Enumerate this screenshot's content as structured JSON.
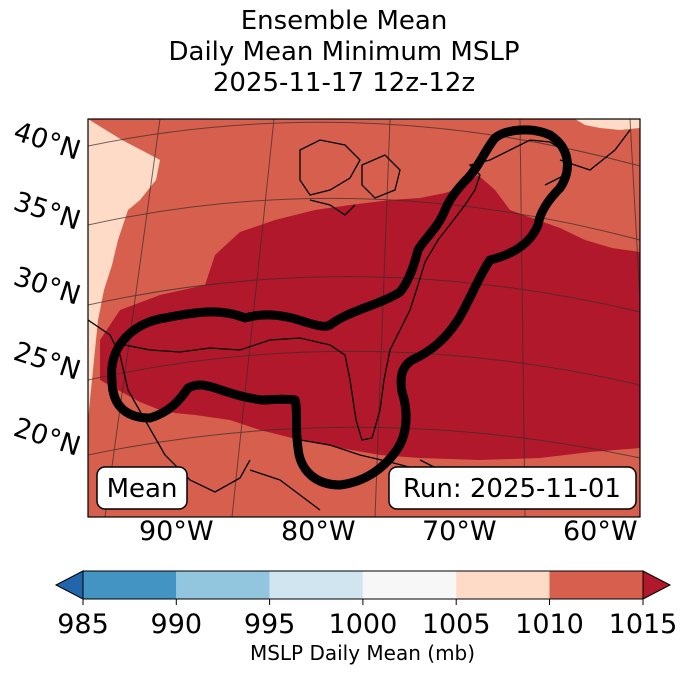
{
  "title": {
    "line1": "Ensemble Mean",
    "line2": "Daily Mean Minimum MSLP",
    "line3": "2025-11-17 12z-12z"
  },
  "map": {
    "lat_labels": [
      "40°N",
      "35°N",
      "30°N",
      "25°N",
      "20°N"
    ],
    "lon_labels": [
      "90°W",
      "80°W",
      "70°W",
      "60°W"
    ],
    "mean_label": "Mean",
    "run_label": "Run: 2025-11-01",
    "regions": [
      {
        "name": "background",
        "range": "1010-1015"
      },
      {
        "name": "low-core",
        "range": "1015+"
      },
      {
        "name": "pale-west",
        "range": "1005-1010"
      },
      {
        "name": "pale-northeast",
        "range": "1005-1010"
      }
    ]
  },
  "colorbar": {
    "ticks": [
      "985",
      "990",
      "995",
      "1000",
      "1005",
      "1010",
      "1015"
    ],
    "label": "MSLP Daily Mean (mb)",
    "colors": {
      "under": "#2166ac",
      "c985_990": "#4393c3",
      "c990_995": "#92c5de",
      "c995_1000": "#d1e5f0",
      "c1000_1005": "#f7f7f7",
      "c1005_1010": "#fddbc7",
      "c1010_1015": "#d6604d",
      "over": "#b2182b"
    }
  }
}
